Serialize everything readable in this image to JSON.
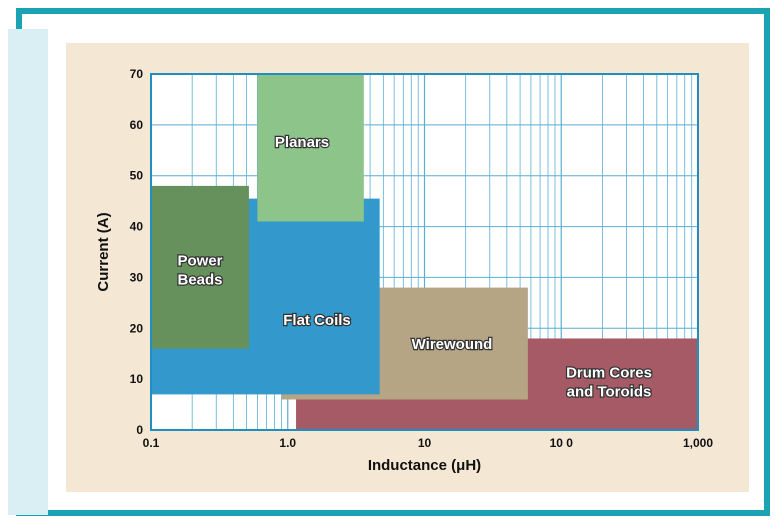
{
  "chart_data": {
    "type": "area",
    "xlabel": "Inductance (μH)",
    "ylabel": "Current (A)",
    "x_scale": "log",
    "xlim": [
      0.1,
      1000
    ],
    "ylim": [
      0,
      70
    ],
    "grid": true,
    "x_ticks": [
      {
        "value": 0.1,
        "label": "0.1"
      },
      {
        "value": 1,
        "label": "1.0"
      },
      {
        "value": 10,
        "label": "10"
      },
      {
        "value": 100,
        "label": "10 0"
      },
      {
        "value": 1000,
        "label": "1,000"
      }
    ],
    "y_ticks": [
      {
        "value": 0,
        "label": "0"
      },
      {
        "value": 10,
        "label": "10"
      },
      {
        "value": 20,
        "label": "20"
      },
      {
        "value": 30,
        "label": "30"
      },
      {
        "value": 40,
        "label": "40"
      },
      {
        "value": 50,
        "label": "50"
      },
      {
        "value": 60,
        "label": "60"
      },
      {
        "value": 70,
        "label": "70"
      }
    ],
    "regions": [
      {
        "id": "drum-cores",
        "label": [
          "Drum Cores",
          "and Toroids"
        ],
        "x_range": [
          1.15,
          1000
        ],
        "y_range": [
          0,
          18
        ],
        "color": "#a65a66"
      },
      {
        "id": "wirewound",
        "label": [
          "Wirewound"
        ],
        "x_range": [
          0.9,
          57
        ],
        "y_range": [
          6,
          28
        ],
        "color": "#b5a585"
      },
      {
        "id": "flat-coils",
        "label": [
          "Flat Coils"
        ],
        "x_range": [
          0.1,
          4.7
        ],
        "y_range": [
          7,
          45.5
        ],
        "color": "#3399cc"
      },
      {
        "id": "planars",
        "label": [
          "Planars"
        ],
        "x_range": [
          0.6,
          3.6
        ],
        "y_range": [
          41,
          70
        ],
        "color": "#8dc48a"
      },
      {
        "id": "power-beads",
        "label": [
          "Power",
          "Beads"
        ],
        "x_range": [
          0.1,
          0.52
        ],
        "y_range": [
          16,
          48
        ],
        "color": "#66905c"
      }
    ]
  }
}
